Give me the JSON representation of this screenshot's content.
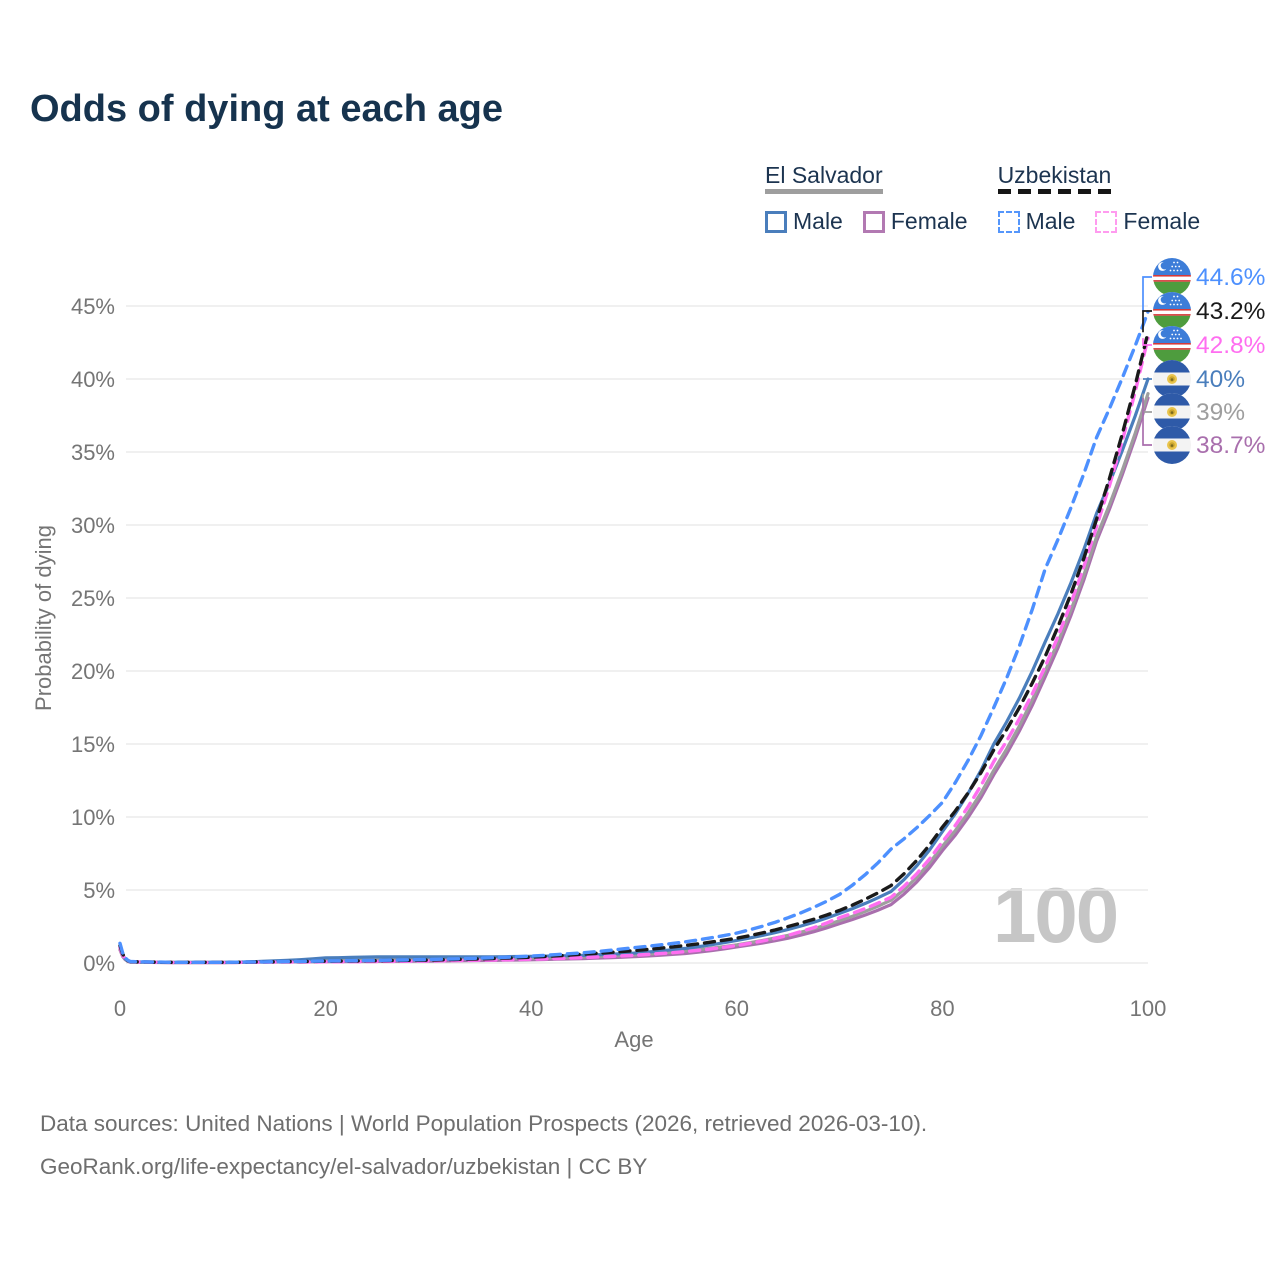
{
  "title": "Odds of dying at each age",
  "watermark": "100",
  "legend": {
    "groups": [
      {
        "name": "El Salvador",
        "underline": "solid",
        "entries": [
          {
            "label": "Male",
            "color": "#4a7ebc",
            "dashed": false
          },
          {
            "label": "Female",
            "color": "#b279b2",
            "dashed": false
          }
        ]
      },
      {
        "name": "Uzbekistan",
        "underline": "dashed",
        "entries": [
          {
            "label": "Male",
            "color": "#5596fb",
            "dashed": true
          },
          {
            "label": "Female",
            "color": "#ff9bef",
            "dashed": true
          }
        ]
      }
    ]
  },
  "footer": {
    "line1": "Data sources: United Nations | World Population Prospects (2026, retrieved 2026-03-10).",
    "line2": "GeoRank.org/life-expectancy/el-salvador/uzbekistan | CC BY"
  },
  "chart_data": {
    "type": "line",
    "title": "Odds of dying at each age",
    "xlabel": "Age",
    "ylabel": "Probability of dying",
    "xlim": [
      0,
      100
    ],
    "ylim": [
      0,
      46
    ],
    "grid": "horizontal",
    "x_ticks": [
      0,
      20,
      40,
      60,
      80,
      100
    ],
    "y_ticks": [
      0,
      5,
      10,
      15,
      20,
      25,
      30,
      35,
      40,
      45
    ],
    "y_tick_suffix": "%",
    "ages": [
      0,
      1,
      5,
      10,
      15,
      20,
      25,
      30,
      35,
      40,
      45,
      50,
      55,
      60,
      65,
      70,
      75,
      80,
      85,
      90,
      95,
      100
    ],
    "series": [
      {
        "name": "Uzbekistan Male",
        "slug": "uzbekistan-male",
        "flag": "uz",
        "color": "#4d90fe",
        "dashed": true,
        "end_label": "44.6%",
        "values": [
          1.35,
          0.1,
          0.05,
          0.05,
          0.09,
          0.14,
          0.18,
          0.24,
          0.33,
          0.47,
          0.7,
          1.05,
          1.45,
          2.05,
          3.1,
          4.7,
          7.8,
          11.0,
          17.5,
          27.0,
          36.0,
          44.6
        ]
      },
      {
        "name": "Uzbekistan Both",
        "slug": "uzbekistan-both",
        "flag": "uz",
        "color": "#1a1a1a",
        "dashed": true,
        "end_label": "43.2%",
        "values": [
          1.2,
          0.09,
          0.045,
          0.045,
          0.085,
          0.12,
          0.16,
          0.2,
          0.28,
          0.4,
          0.6,
          0.85,
          1.2,
          1.7,
          2.5,
          3.6,
          5.3,
          9.3,
          14.6,
          21.0,
          30.4,
          43.2
        ]
      },
      {
        "name": "Uzbekistan Female",
        "slug": "uzbekistan-female",
        "flag": "uz",
        "color": "#ff6ef0",
        "dashed": true,
        "end_label": "42.8%",
        "values": [
          1.05,
          0.08,
          0.04,
          0.04,
          0.06,
          0.08,
          0.1,
          0.14,
          0.19,
          0.26,
          0.37,
          0.53,
          0.78,
          1.2,
          1.9,
          3.1,
          4.5,
          8.3,
          13.8,
          20.3,
          29.9,
          42.8
        ]
      },
      {
        "name": "El Salvador Male",
        "slug": "el-salvador-male",
        "flag": "sv",
        "color": "#4a7ebc",
        "dashed": false,
        "end_label": "40%",
        "values": [
          1.1,
          0.08,
          0.04,
          0.04,
          0.15,
          0.35,
          0.42,
          0.42,
          0.42,
          0.45,
          0.52,
          0.68,
          1.0,
          1.55,
          2.3,
          3.4,
          4.9,
          9.0,
          15.0,
          22.0,
          30.8,
          40.0
        ]
      },
      {
        "name": "El Salvador Both",
        "slug": "el-salvador-both",
        "flag": "sv",
        "color": "#9e9e9e",
        "dashed": false,
        "end_label": "39%",
        "values": [
          1.0,
          0.07,
          0.035,
          0.035,
          0.11,
          0.22,
          0.27,
          0.28,
          0.3,
          0.33,
          0.4,
          0.55,
          0.82,
          1.25,
          1.9,
          2.9,
          4.3,
          8.0,
          13.2,
          20.0,
          29.2,
          39.0
        ]
      },
      {
        "name": "El Salvador Female",
        "slug": "el-salvador-female",
        "flag": "sv",
        "color": "#a96fad",
        "dashed": false,
        "end_label": "38.7%",
        "values": [
          0.9,
          0.06,
          0.03,
          0.03,
          0.07,
          0.09,
          0.11,
          0.13,
          0.17,
          0.22,
          0.3,
          0.43,
          0.65,
          1.1,
          1.7,
          2.7,
          4.0,
          7.7,
          12.9,
          19.6,
          28.9,
          38.7
        ]
      }
    ]
  }
}
